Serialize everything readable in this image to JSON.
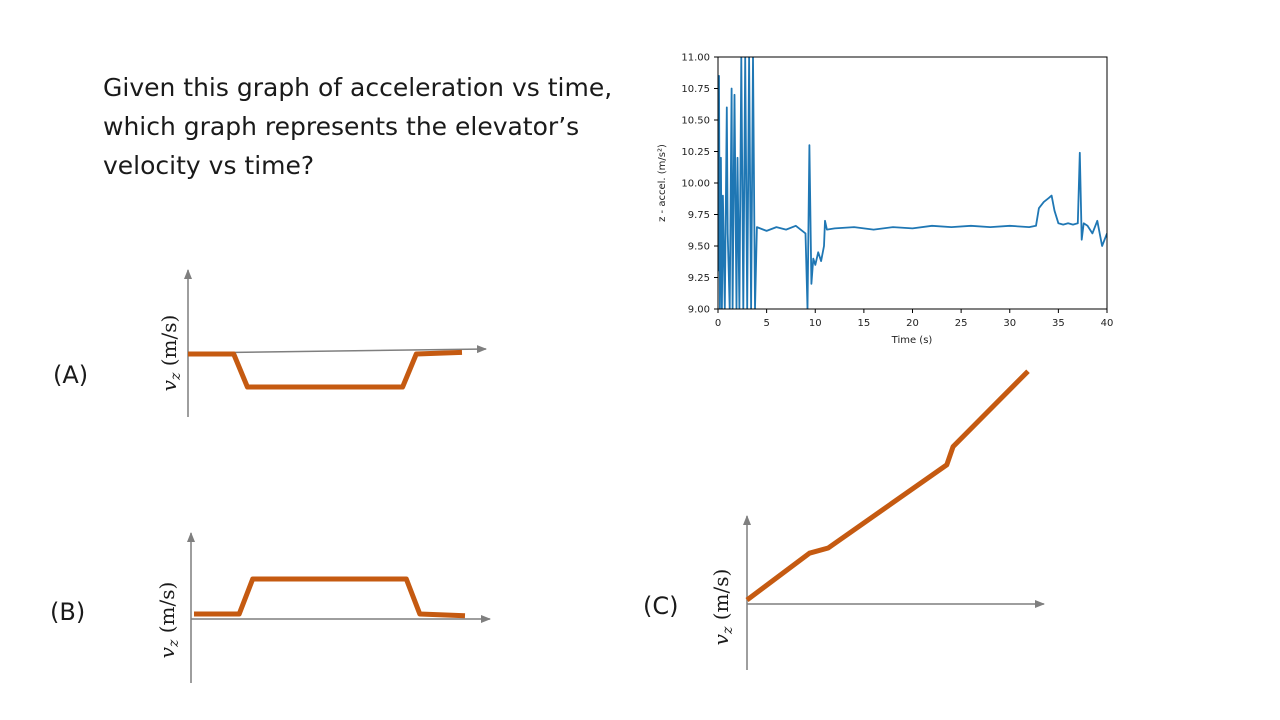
{
  "slide": {
    "question_lines": [
      "Given this graph of acceleration vs time,",
      "which graph represents the elevator’s",
      "velocity vs time?"
    ],
    "options": [
      {
        "label": "(A)",
        "axis_label": "v",
        "axis_sub": "z",
        "axis_unit": " (m/s)"
      },
      {
        "label": "(B)",
        "axis_label": "v",
        "axis_sub": "z",
        "axis_unit": " (m/s)"
      },
      {
        "label": "(C)",
        "axis_label": "v",
        "axis_sub": "z",
        "axis_unit": " (m/s)"
      }
    ],
    "colors": {
      "accent_line": "#c55a11",
      "axis": "#7f7f7f",
      "data_line": "#1f77b4"
    }
  },
  "chart_data": {
    "type": "line",
    "title": "",
    "xlabel": "Time (s)",
    "ylabel": "z - accel. (m/s²)",
    "xlim": [
      0,
      40
    ],
    "ylim": [
      9.0,
      11.0
    ],
    "x_ticks": [
      0,
      5,
      10,
      15,
      20,
      25,
      30,
      35,
      40
    ],
    "y_ticks": [
      "9.00",
      "9.25",
      "9.50",
      "9.75",
      "10.00",
      "10.25",
      "10.50",
      "10.75",
      "11.00"
    ],
    "grid": false,
    "series": [
      {
        "color": "#1f77b4",
        "x": [
          0,
          0.1,
          0.2,
          0.3,
          0.4,
          0.5,
          0.7,
          0.9,
          1.0,
          1.2,
          1.4,
          1.5,
          1.7,
          1.9,
          2.0,
          2.2,
          2.4,
          2.6,
          2.8,
          3.0,
          3.2,
          3.4,
          3.6,
          3.8,
          4.0,
          5,
          6,
          7,
          8,
          9.0,
          9.2,
          9.4,
          9.6,
          9.8,
          10.0,
          10.3,
          10.6,
          10.9,
          11.0,
          11.2,
          12,
          14,
          16,
          18,
          20,
          22,
          24,
          26,
          28,
          30,
          32,
          32.7,
          33.0,
          33.5,
          34.0,
          34.3,
          34.6,
          35.0,
          35.5,
          36.0,
          36.5,
          37.0,
          37.2,
          37.4,
          37.6,
          38,
          38.5,
          39,
          39.5,
          40
        ],
        "y": [
          9.3,
          10.85,
          9.0,
          10.2,
          9.0,
          9.9,
          9.0,
          10.6,
          9.6,
          9.0,
          10.75,
          9.0,
          10.7,
          9.0,
          10.2,
          9.0,
          11.0,
          9.0,
          11.0,
          9.0,
          11.0,
          9.0,
          11.0,
          9.0,
          9.65,
          9.62,
          9.65,
          9.63,
          9.66,
          9.6,
          9.0,
          10.3,
          9.2,
          9.4,
          9.35,
          9.45,
          9.38,
          9.5,
          9.7,
          9.63,
          9.64,
          9.65,
          9.63,
          9.65,
          9.64,
          9.66,
          9.65,
          9.66,
          9.65,
          9.66,
          9.65,
          9.66,
          9.8,
          9.85,
          9.88,
          9.9,
          9.78,
          9.68,
          9.67,
          9.68,
          9.67,
          9.68,
          10.24,
          9.55,
          9.68,
          9.66,
          9.6,
          9.7,
          9.5,
          9.6
        ]
      }
    ]
  },
  "options_data": [
    {
      "type": "line",
      "option": "(A)",
      "x": [
        0,
        1,
        1.3,
        4.7,
        5,
        6
      ],
      "y": [
        0,
        0,
        -1,
        -1,
        0,
        0.05
      ]
    },
    {
      "type": "line",
      "option": "(B)",
      "x": [
        0,
        1,
        1.3,
        4.7,
        5,
        6
      ],
      "y": [
        0,
        0,
        1,
        1,
        0,
        -0.05
      ]
    },
    {
      "type": "line",
      "option": "(C)",
      "x": [
        0,
        1,
        1.3,
        3.2,
        3.3,
        4.5
      ],
      "y": [
        0,
        0.9,
        1.0,
        2.6,
        2.95,
        4.4
      ]
    }
  ]
}
